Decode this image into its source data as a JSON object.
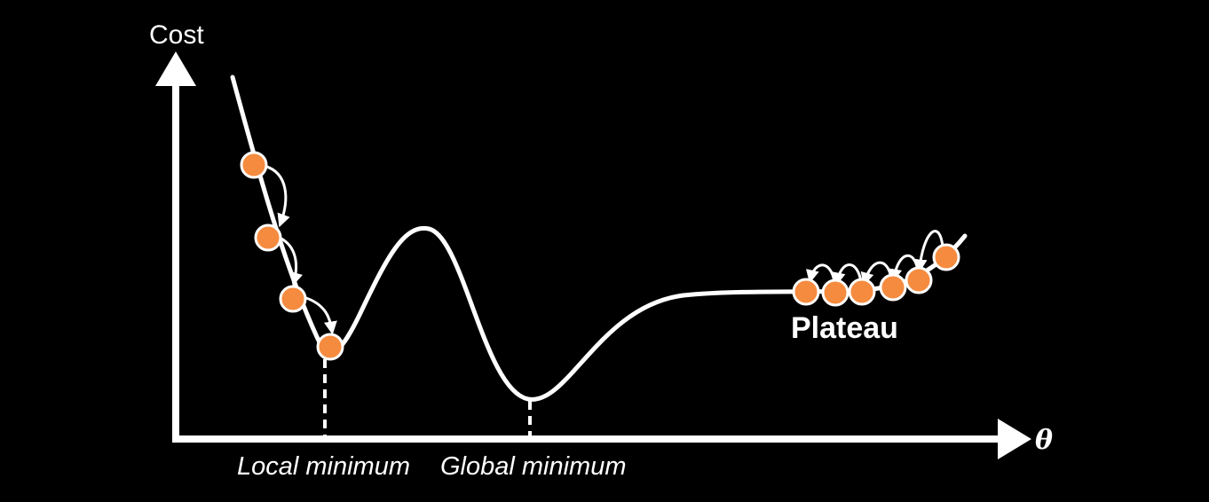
{
  "axes": {
    "y_label": "Cost",
    "x_label": "θ"
  },
  "labels": {
    "local_minimum": "Local minimum",
    "global_minimum": "Global minimum",
    "plateau": "Plateau"
  },
  "colors": {
    "background": "#000000",
    "curve": "#ffffff",
    "point_fill": "#f58b3f",
    "point_stroke": "#ffffff"
  }
}
